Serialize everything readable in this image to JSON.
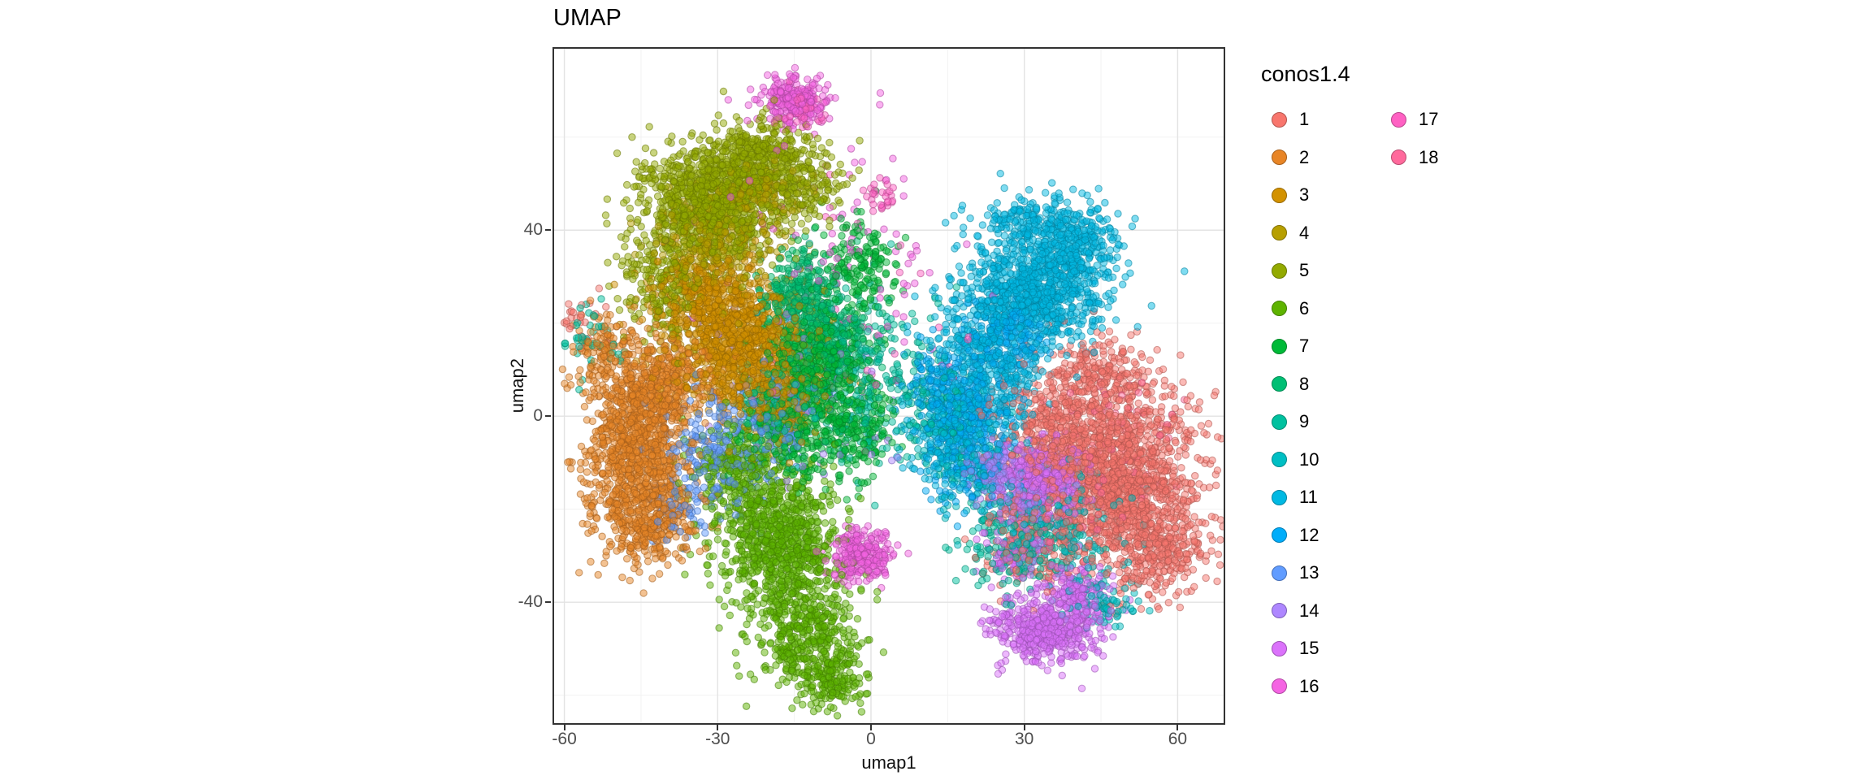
{
  "title": "UMAP",
  "chart_data": {
    "type": "scatter",
    "title": "UMAP",
    "xlabel": "umap1",
    "ylabel": "umap2",
    "xlim": [
      -62,
      69
    ],
    "ylim": [
      -66,
      79
    ],
    "x_ticks": [
      -60,
      -30,
      0,
      30,
      60
    ],
    "y_ticks": [
      -40,
      0,
      40
    ],
    "grid": true,
    "legend_title": "conos1.4",
    "legend_position": "right",
    "point_alpha": 0.5,
    "point_radius": 4.2,
    "clusters": [
      {
        "label": "1",
        "color": "#F8766D",
        "blobs": [
          [
            48,
            -13,
            8,
            10,
            1500
          ],
          [
            36,
            -2,
            5,
            6,
            300
          ],
          [
            57,
            -28,
            5,
            5,
            280
          ],
          [
            45,
            9,
            5,
            4,
            200
          ],
          [
            30,
            -27,
            4,
            5,
            150
          ],
          [
            -56,
            20,
            3,
            3,
            25
          ]
        ]
      },
      {
        "label": "2",
        "color": "#E88526",
        "blobs": [
          [
            -46,
            -6,
            5,
            9,
            950
          ],
          [
            -40,
            7,
            5,
            5,
            300
          ],
          [
            -43,
            -22,
            5,
            5,
            350
          ],
          [
            -52,
            14,
            3,
            4,
            120
          ]
        ]
      },
      {
        "label": "3",
        "color": "#D39200",
        "blobs": [
          [
            -26,
            16,
            7,
            7,
            1050
          ],
          [
            -33,
            27,
            5,
            4,
            250
          ],
          [
            -18,
            5,
            4,
            5,
            200
          ]
        ]
      },
      {
        "label": "4",
        "color": "#B79F00",
        "blobs": [
          [
            -30,
            38,
            6,
            5,
            320
          ],
          [
            -22,
            48,
            4,
            3,
            120
          ]
        ]
      },
      {
        "label": "5",
        "color": "#93AA00",
        "blobs": [
          [
            -31,
            46,
            7,
            6,
            1050
          ],
          [
            -22,
            56,
            5,
            4,
            350
          ],
          [
            -40,
            28,
            4,
            6,
            260
          ],
          [
            -13,
            50,
            4,
            4,
            150
          ]
        ]
      },
      {
        "label": "6",
        "color": "#5EB300",
        "blobs": [
          [
            -18,
            -28,
            6,
            8,
            850
          ],
          [
            -12,
            -48,
            5,
            6,
            420
          ],
          [
            -26,
            -12,
            5,
            6,
            300
          ],
          [
            -7,
            -57,
            3,
            3,
            120
          ]
        ]
      },
      {
        "label": "7",
        "color": "#00BA38",
        "blobs": [
          [
            -11,
            12,
            5,
            7,
            480
          ],
          [
            -4,
            -2,
            4,
            6,
            260
          ],
          [
            -16,
            -4,
            4,
            5,
            200
          ],
          [
            -2,
            32,
            4,
            5,
            170
          ]
        ]
      },
      {
        "label": "8",
        "color": "#00BF74",
        "blobs": [
          [
            -14,
            26,
            4,
            5,
            300
          ],
          [
            -6,
            17,
            4,
            4,
            180
          ],
          [
            -20,
            2,
            3,
            4,
            120
          ]
        ]
      },
      {
        "label": "9",
        "color": "#00C19F",
        "blobs": [
          [
            -2,
            8,
            7,
            10,
            230
          ],
          [
            28,
            -28,
            6,
            5,
            180
          ],
          [
            12,
            1,
            5,
            6,
            130
          ],
          [
            -55,
            16,
            3,
            4,
            40
          ]
        ]
      },
      {
        "label": "10",
        "color": "#00BFC4",
        "blobs": [
          [
            36,
            -22,
            7,
            7,
            260
          ],
          [
            20,
            -10,
            4,
            5,
            120
          ],
          [
            45,
            -40,
            4,
            3,
            90
          ]
        ]
      },
      {
        "label": "11",
        "color": "#00B9E3",
        "blobs": [
          [
            32,
            27,
            7,
            6,
            950
          ],
          [
            22,
            10,
            5,
            8,
            480
          ],
          [
            40,
            38,
            4,
            4,
            260
          ],
          [
            15,
            -4,
            4,
            6,
            220
          ],
          [
            30,
            42,
            5,
            3,
            150
          ]
        ]
      },
      {
        "label": "12",
        "color": "#00ADFA",
        "blobs": [
          [
            19,
            -4,
            4,
            7,
            360
          ],
          [
            27,
            17,
            4,
            4,
            160
          ],
          [
            13,
            8,
            3,
            4,
            110
          ]
        ]
      },
      {
        "label": "13",
        "color": "#619CFF",
        "blobs": [
          [
            -30,
            -8,
            5,
            7,
            230
          ],
          [
            -18,
            0,
            4,
            6,
            130
          ],
          [
            -38,
            -20,
            3,
            3,
            60
          ]
        ]
      },
      {
        "label": "14",
        "color": "#AE87FF",
        "blobs": [
          [
            24,
            -12,
            3,
            3,
            140
          ],
          [
            -15,
            5,
            10,
            12,
            80
          ],
          [
            30,
            -20,
            3,
            3,
            70
          ]
        ]
      },
      {
        "label": "15",
        "color": "#DB72FB",
        "blobs": [
          [
            33,
            -14,
            4,
            4,
            470
          ],
          [
            34,
            -46,
            5,
            3.5,
            520
          ],
          [
            41,
            -38,
            3,
            3,
            160
          ],
          [
            28,
            -30,
            3,
            3,
            90
          ]
        ]
      },
      {
        "label": "16",
        "color": "#F564E3",
        "blobs": [
          [
            -15,
            68,
            3,
            2.5,
            270
          ],
          [
            -2,
            -30,
            2.8,
            2.5,
            250
          ],
          [
            -14,
            45,
            12,
            12,
            55
          ],
          [
            3,
            28,
            8,
            9,
            35
          ]
        ]
      },
      {
        "label": "17",
        "color": "#FF61C3",
        "blobs": [
          [
            -13,
            66,
            2,
            2,
            55
          ],
          [
            2,
            47,
            1.5,
            1.5,
            28
          ],
          [
            -5,
            20,
            12,
            15,
            35
          ]
        ]
      },
      {
        "label": "18",
        "color": "#FF699C",
        "blobs": [
          [
            44,
            -8,
            8,
            8,
            90
          ],
          [
            35,
            -25,
            5,
            5,
            45
          ]
        ]
      }
    ]
  }
}
